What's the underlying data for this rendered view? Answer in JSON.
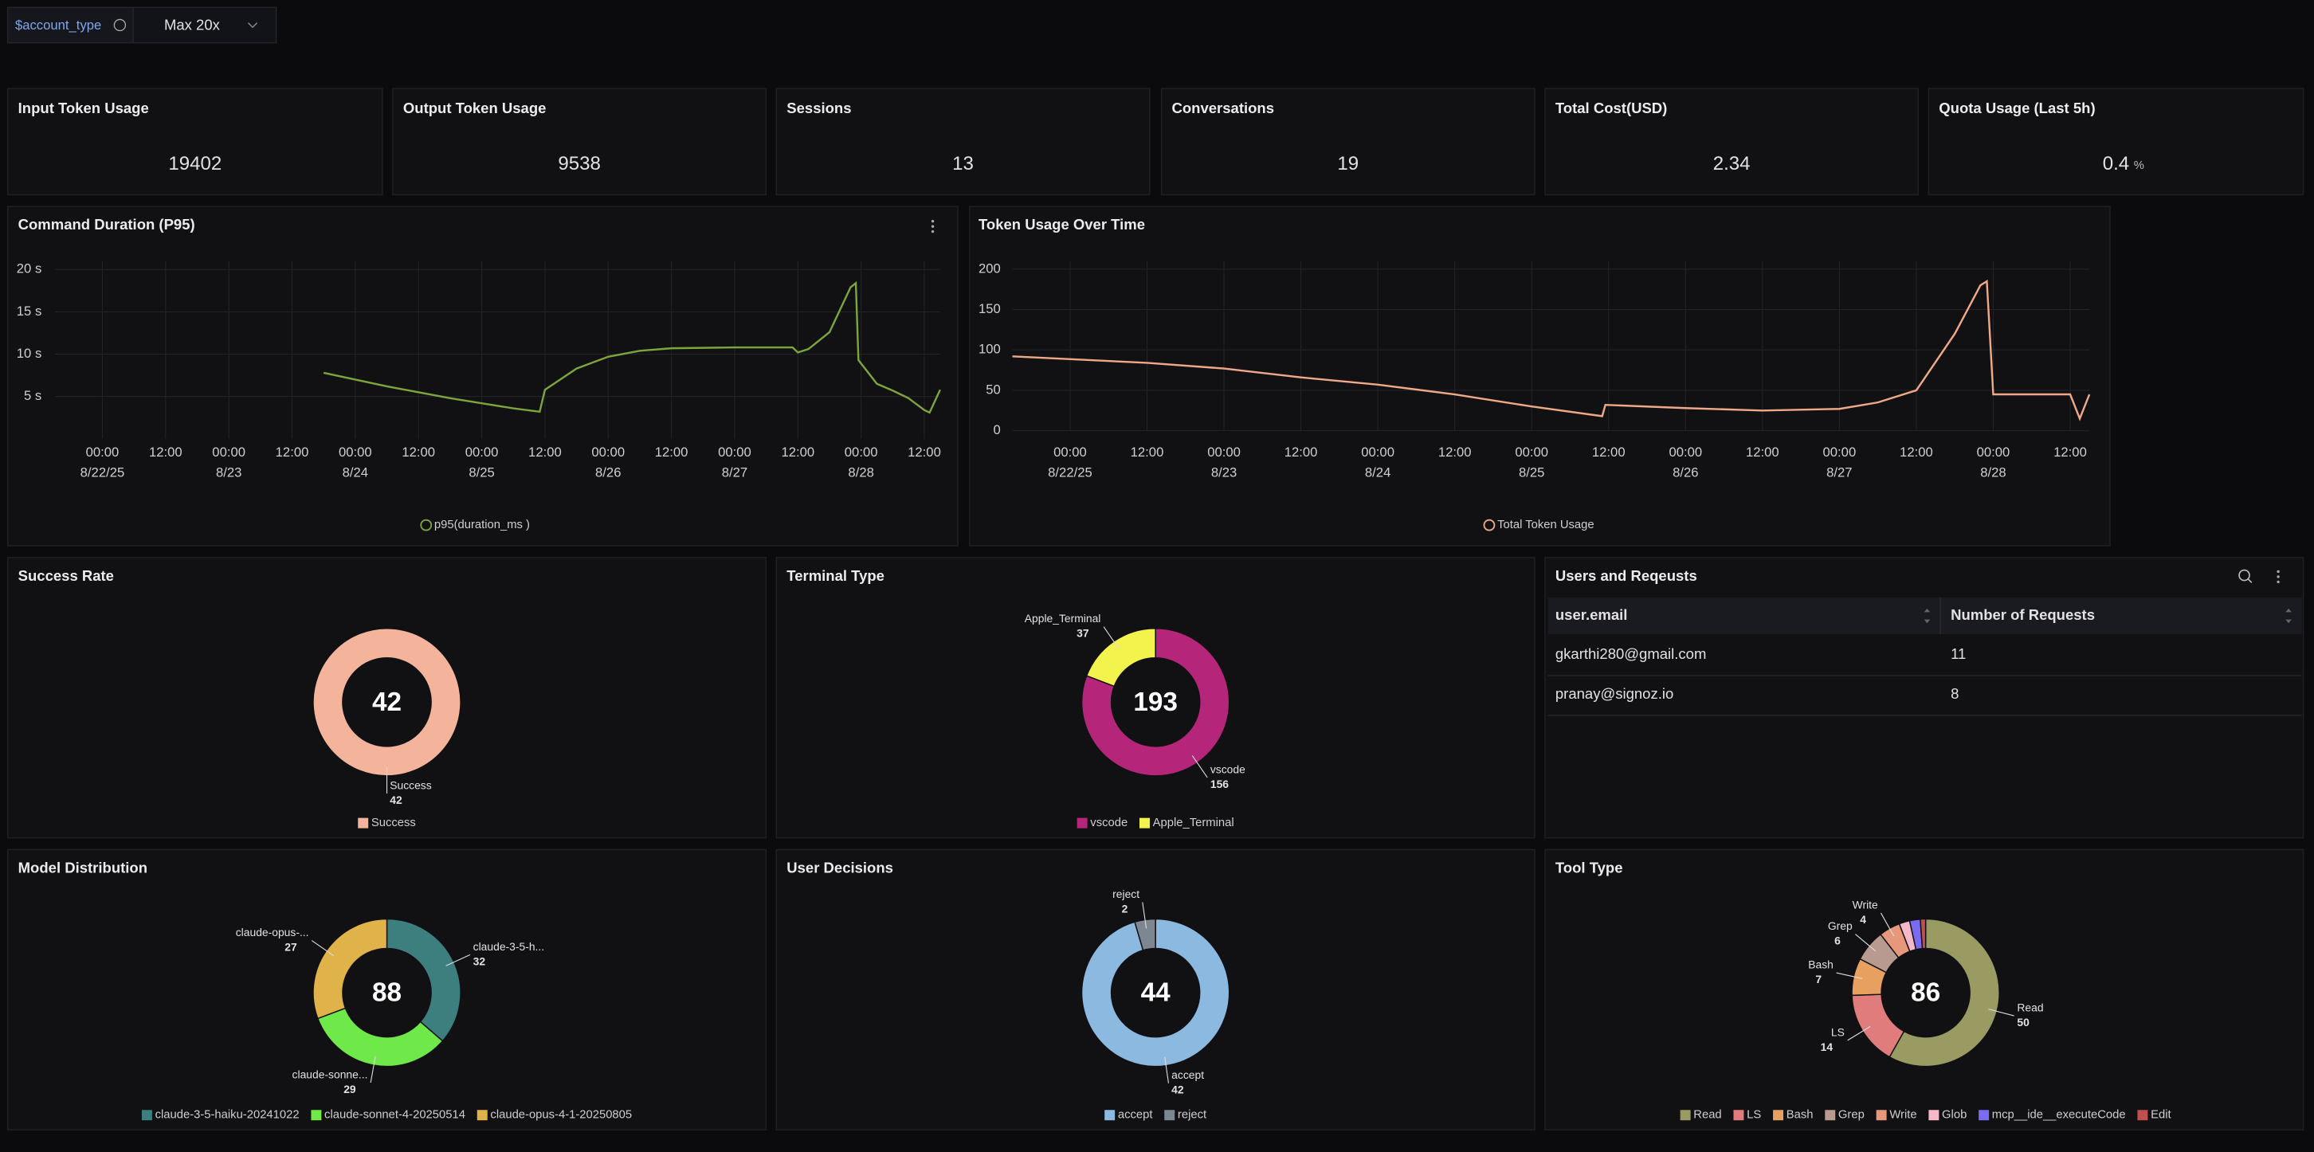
{
  "filter": {
    "label": "$account_type",
    "value": "Max 20x"
  },
  "stats": [
    {
      "title": "Input Token Usage",
      "value": 19402
    },
    {
      "title": "Output Token Usage",
      "value": 9538
    },
    {
      "title": "Sessions",
      "value": 13
    },
    {
      "title": "Conversations",
      "value": 19
    },
    {
      "title": "Total Cost(USD)",
      "value": 2.34
    },
    {
      "title": "Quota Usage (Last 5h)",
      "value": 0.4,
      "unit": "%"
    }
  ],
  "line_charts": [
    {
      "type": "line",
      "title": "Command Duration (P95)",
      "x": [
        "8/23 18:00",
        "8/24 06:00",
        "8/24 18:00",
        "8/25 06:00",
        "8/25 11:00",
        "8/25 12:00",
        "8/25 18:00",
        "8/26 00:00",
        "8/26 06:00",
        "8/26 12:00",
        "8/27 00:00",
        "8/27 11:00",
        "8/27 12:00",
        "8/27 14:00",
        "8/27 18:00",
        "8/27 22:00",
        "8/27 23:00",
        "8/27 23:30",
        "8/28 03:00",
        "8/28 06:00",
        "8/28 09:00",
        "8/28 12:00",
        "8/28 13:00",
        "8/28 15:00"
      ],
      "series": [
        {
          "name": "p95(duration_ms )",
          "color": "#7ca53b",
          "values": [
            7.8,
            6.2,
            4.8,
            3.6,
            3.2,
            5.8,
            8.3,
            9.7,
            10.4,
            10.7,
            10.8,
            10.8,
            10.2,
            10.6,
            12.6,
            17.9,
            18.4,
            9.3,
            6.5,
            5.7,
            4.8,
            3.4,
            3.1,
            5.8
          ]
        }
      ],
      "xlim": [
        "8/21 15:00",
        "8/28 15:00"
      ],
      "xticks": [
        {
          "value": "8/22 00:00",
          "label": [
            "00:00",
            "8/22/25"
          ]
        },
        {
          "value": "8/22 12:00",
          "label": [
            "12:00"
          ]
        },
        {
          "value": "8/23 00:00",
          "label": [
            "00:00",
            "8/23"
          ]
        },
        {
          "value": "8/23 12:00",
          "label": [
            "12:00"
          ]
        },
        {
          "value": "8/24 00:00",
          "label": [
            "00:00",
            "8/24"
          ]
        },
        {
          "value": "8/24 12:00",
          "label": [
            "12:00"
          ]
        },
        {
          "value": "8/25 00:00",
          "label": [
            "00:00",
            "8/25"
          ]
        },
        {
          "value": "8/25 12:00",
          "label": [
            "12:00"
          ]
        },
        {
          "value": "8/26 00:00",
          "label": [
            "00:00",
            "8/26"
          ]
        },
        {
          "value": "8/26 12:00",
          "label": [
            "12:00"
          ]
        },
        {
          "value": "8/27 00:00",
          "label": [
            "00:00",
            "8/27"
          ]
        },
        {
          "value": "8/27 12:00",
          "label": [
            "12:00"
          ]
        },
        {
          "value": "8/28 00:00",
          "label": [
            "00:00",
            "8/28"
          ]
        },
        {
          "value": "8/28 12:00",
          "label": [
            "12:00"
          ]
        }
      ],
      "ylim": [
        0,
        21
      ],
      "yticks": [
        {
          "value": 5,
          "label": "5 s"
        },
        {
          "value": 10,
          "label": "10 s"
        },
        {
          "value": 15,
          "label": "15 s"
        },
        {
          "value": 20,
          "label": "20 s"
        }
      ],
      "grid": true
    },
    {
      "type": "line",
      "title": "Token Usage Over Time",
      "x": [
        "8/21 15:00",
        "8/22 12:00",
        "8/23 00:00",
        "8/23 12:00",
        "8/24 00:00",
        "8/24 12:00",
        "8/25 00:00",
        "8/25 11:00",
        "8/25 11:30",
        "8/26 00:00",
        "8/26 12:00",
        "8/27 00:00",
        "8/27 06:00",
        "8/27 12:00",
        "8/27 18:00",
        "8/27 22:00",
        "8/27 23:00",
        "8/28 00:00",
        "8/28 12:00",
        "8/28 13:30",
        "8/28 15:00"
      ],
      "series": [
        {
          "name": "Total Token Usage",
          "color": "#f0a987",
          "values": [
            92,
            84,
            77,
            66,
            57,
            45,
            30,
            18,
            32,
            28,
            25,
            27,
            35,
            50,
            120,
            180,
            185,
            45,
            45,
            15,
            45
          ]
        }
      ],
      "xlim": [
        "8/21 15:00",
        "8/28 15:00"
      ],
      "xticks": [
        {
          "value": "8/22 00:00",
          "label": [
            "00:00",
            "8/22/25"
          ]
        },
        {
          "value": "8/22 12:00",
          "label": [
            "12:00"
          ]
        },
        {
          "value": "8/23 00:00",
          "label": [
            "00:00",
            "8/23"
          ]
        },
        {
          "value": "8/23 12:00",
          "label": [
            "12:00"
          ]
        },
        {
          "value": "8/24 00:00",
          "label": [
            "00:00",
            "8/24"
          ]
        },
        {
          "value": "8/24 12:00",
          "label": [
            "12:00"
          ]
        },
        {
          "value": "8/25 00:00",
          "label": [
            "00:00",
            "8/25"
          ]
        },
        {
          "value": "8/25 12:00",
          "label": [
            "12:00"
          ]
        },
        {
          "value": "8/26 00:00",
          "label": [
            "00:00",
            "8/26"
          ]
        },
        {
          "value": "8/26 12:00",
          "label": [
            "12:00"
          ]
        },
        {
          "value": "8/27 00:00",
          "label": [
            "00:00",
            "8/27"
          ]
        },
        {
          "value": "8/27 12:00",
          "label": [
            "12:00"
          ]
        },
        {
          "value": "8/28 00:00",
          "label": [
            "00:00",
            "8/28"
          ]
        },
        {
          "value": "8/28 12:00",
          "label": [
            "12:00"
          ]
        }
      ],
      "ylim": [
        0,
        210
      ],
      "yticks": [
        0,
        50,
        100,
        150,
        200
      ],
      "grid": true
    }
  ],
  "pies": [
    {
      "type": "donut",
      "title": "Success Rate",
      "total": 42,
      "categories": [
        "Success"
      ],
      "values": [
        42
      ],
      "colors": [
        "#f4b39b"
      ]
    },
    {
      "type": "donut",
      "title": "Terminal Type",
      "total": 193,
      "categories": [
        "vscode",
        "Apple_Terminal"
      ],
      "values": [
        156,
        37
      ],
      "colors": [
        "#b5267a",
        "#f3f34e"
      ]
    },
    {
      "type": "donut",
      "title": "Model Distribution",
      "total": 88,
      "categories": [
        "claude-3-5-haiku-20241022",
        "claude-sonnet-4-20250514",
        "claude-opus-4-1-20250805"
      ],
      "label_texts": [
        "claude-3-5-h...",
        "claude-sonne...",
        "claude-opus-..."
      ],
      "values": [
        32,
        29,
        27
      ],
      "colors": [
        "#3d7f7f",
        "#6fe84a",
        "#e0b34a"
      ]
    },
    {
      "type": "donut",
      "title": "User Decisions",
      "total": 44,
      "categories": [
        "accept",
        "reject"
      ],
      "values": [
        42,
        2
      ],
      "colors": [
        "#8bb9e0",
        "#7d8791"
      ]
    },
    {
      "type": "donut",
      "title": "Tool Type",
      "total": 86,
      "categories": [
        "Read",
        "LS",
        "Bash",
        "Grep",
        "Write",
        "Glob",
        "mcp__ide__executeCode",
        "Edit"
      ],
      "values": [
        50,
        14,
        7,
        6,
        4,
        2,
        2,
        1
      ],
      "colors": [
        "#9a9a63",
        "#e07c7c",
        "#e8a060",
        "#b89a90",
        "#e8987a",
        "#f5b8c8",
        "#7b6bf0",
        "#c05050"
      ]
    }
  ],
  "table": {
    "title": "Users and Reqeusts",
    "columns": [
      "user.email",
      "Number of Requests"
    ],
    "rows": [
      [
        "gkarthi280@gmail.com",
        11
      ],
      [
        "pranay@signoz.io",
        8
      ]
    ]
  }
}
